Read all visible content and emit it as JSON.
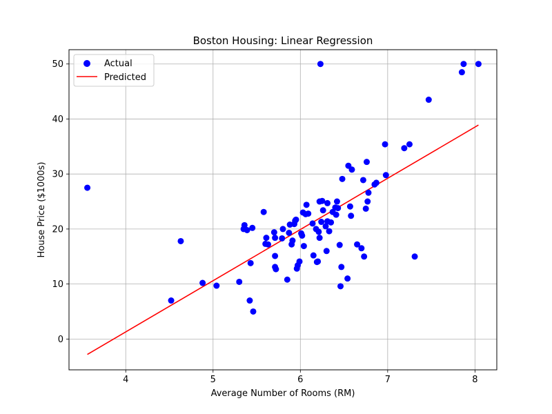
{
  "chart_data": {
    "type": "scatter",
    "title": "Boston Housing: Linear Regression",
    "xlabel": "Average Number of Rooms (RM)",
    "ylabel": "House Price ($1000s)",
    "xlim": [
      3.35,
      8.25
    ],
    "ylim": [
      -5.6,
      52.6
    ],
    "xticks": [
      4,
      5,
      6,
      7,
      8
    ],
    "yticks": [
      0,
      10,
      20,
      30,
      40,
      50
    ],
    "grid": true,
    "legend_position": "top-left",
    "series": [
      {
        "name": "Actual",
        "kind": "scatter",
        "color": "#0000ff",
        "points": [
          [
            3.56,
            27.5
          ],
          [
            4.52,
            7.0
          ],
          [
            4.63,
            17.8
          ],
          [
            4.88,
            10.2
          ],
          [
            5.04,
            9.7
          ],
          [
            5.3,
            10.4
          ],
          [
            5.35,
            20.0
          ],
          [
            5.36,
            20.7
          ],
          [
            5.39,
            19.8
          ],
          [
            5.42,
            7.0
          ],
          [
            5.43,
            13.8
          ],
          [
            5.45,
            20.2
          ],
          [
            5.46,
            5.0
          ],
          [
            5.58,
            23.1
          ],
          [
            5.6,
            17.3
          ],
          [
            5.61,
            18.4
          ],
          [
            5.63,
            17.2
          ],
          [
            5.7,
            19.4
          ],
          [
            5.71,
            18.4
          ],
          [
            5.71,
            15.1
          ],
          [
            5.71,
            13.1
          ],
          [
            5.72,
            12.7
          ],
          [
            5.79,
            18.3
          ],
          [
            5.8,
            20.0
          ],
          [
            5.85,
            10.8
          ],
          [
            5.87,
            19.3
          ],
          [
            5.88,
            20.8
          ],
          [
            5.9,
            17.2
          ],
          [
            5.91,
            17.9
          ],
          [
            5.93,
            20.9
          ],
          [
            5.94,
            21.5
          ],
          [
            5.95,
            21.7
          ],
          [
            5.96,
            12.8
          ],
          [
            5.97,
            13.4
          ],
          [
            5.99,
            14.1
          ],
          [
            6.01,
            19.2
          ],
          [
            6.02,
            18.8
          ],
          [
            6.03,
            23.0
          ],
          [
            6.04,
            16.9
          ],
          [
            6.06,
            22.7
          ],
          [
            6.07,
            24.4
          ],
          [
            6.09,
            22.8
          ],
          [
            6.14,
            21.0
          ],
          [
            6.15,
            15.2
          ],
          [
            6.18,
            20.0
          ],
          [
            6.19,
            14.0
          ],
          [
            6.2,
            14.1
          ],
          [
            6.21,
            19.5
          ],
          [
            6.22,
            25.0
          ],
          [
            6.22,
            18.4
          ],
          [
            6.23,
            50.0
          ],
          [
            6.24,
            21.3
          ],
          [
            6.25,
            25.1
          ],
          [
            6.26,
            23.4
          ],
          [
            6.29,
            20.5
          ],
          [
            6.3,
            16.0
          ],
          [
            6.31,
            24.7
          ],
          [
            6.31,
            21.4
          ],
          [
            6.33,
            19.6
          ],
          [
            6.35,
            21.2
          ],
          [
            6.37,
            23.1
          ],
          [
            6.4,
            23.9
          ],
          [
            6.41,
            22.6
          ],
          [
            6.42,
            25.0
          ],
          [
            6.43,
            23.8
          ],
          [
            6.45,
            17.1
          ],
          [
            6.46,
            9.6
          ],
          [
            6.47,
            13.1
          ],
          [
            6.48,
            29.1
          ],
          [
            6.54,
            11.0
          ],
          [
            6.55,
            31.5
          ],
          [
            6.57,
            24.1
          ],
          [
            6.58,
            22.4
          ],
          [
            6.59,
            30.8
          ],
          [
            6.65,
            17.2
          ],
          [
            6.7,
            16.5
          ],
          [
            6.72,
            28.9
          ],
          [
            6.73,
            15.0
          ],
          [
            6.75,
            23.7
          ],
          [
            6.76,
            32.2
          ],
          [
            6.77,
            25.0
          ],
          [
            6.78,
            26.6
          ],
          [
            6.85,
            28.1
          ],
          [
            6.87,
            28.4
          ],
          [
            6.97,
            35.4
          ],
          [
            6.98,
            29.8
          ],
          [
            7.19,
            34.7
          ],
          [
            7.25,
            35.4
          ],
          [
            7.31,
            15.0
          ],
          [
            7.47,
            43.5
          ],
          [
            7.85,
            48.5
          ],
          [
            7.87,
            50.0
          ],
          [
            8.04,
            50.0
          ]
        ]
      },
      {
        "name": "Predicted",
        "kind": "line",
        "color": "#ff0000",
        "points": [
          [
            3.56,
            -2.8
          ],
          [
            8.04,
            38.9
          ]
        ]
      }
    ]
  }
}
